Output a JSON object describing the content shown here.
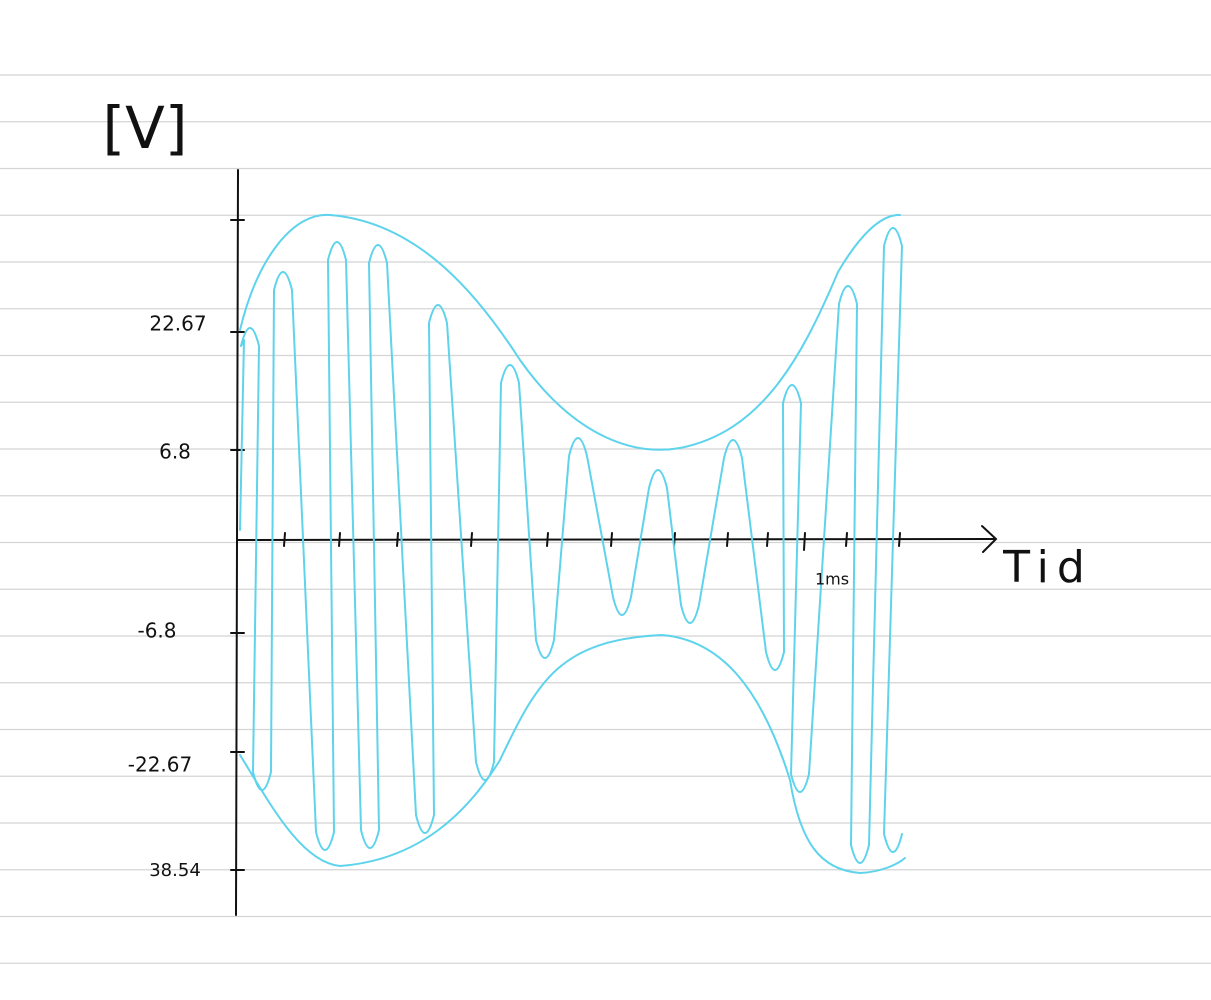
{
  "axis": {
    "y_label": "[V]",
    "x_label": "Tid",
    "x_tick_label": "1ms",
    "y_tick_labels": [
      "22.67",
      "6.8",
      "-6.8",
      "-22.67",
      "38.54"
    ]
  }
}
